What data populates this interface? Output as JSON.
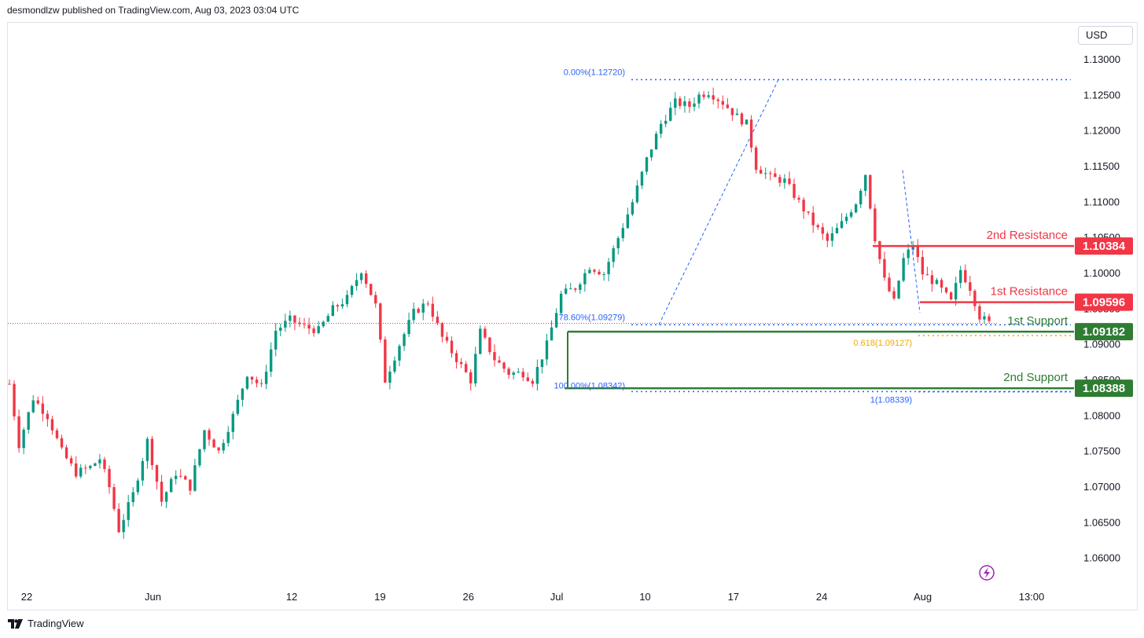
{
  "header": {
    "publisher": "desmondlzw published on TradingView.com, Aug 03, 2023 03:04 UTC"
  },
  "currency_button": {
    "label": "USD"
  },
  "footer": {
    "logo_label": "TradingView"
  },
  "colors": {
    "bull": "#089981",
    "bear": "#f23645",
    "resistance": "#f23645",
    "support": "#2e7d32",
    "fib_blue": "#2962ff",
    "fib_orange": "#f0a800"
  },
  "chart_data": {
    "type": "candlestick",
    "title": "",
    "symbol_quote": "USD",
    "y_ticks": [
      "1.13000",
      "1.12500",
      "1.12000",
      "1.11500",
      "1.11000",
      "1.10500",
      "1.10000",
      "1.09500",
      "1.09000",
      "1.08500",
      "1.08000",
      "1.07500",
      "1.07000",
      "1.06500",
      "1.06000"
    ],
    "ylim": [
      1.0572,
      1.1335
    ],
    "x_ticks": [
      {
        "label": "22",
        "date": "2023-05-22"
      },
      {
        "label": "Jun",
        "date": "2023-06-01"
      },
      {
        "label": "12",
        "date": "2023-06-12"
      },
      {
        "label": "19",
        "date": "2023-06-19"
      },
      {
        "label": "26",
        "date": "2023-06-26"
      },
      {
        "label": "Jul",
        "date": "2023-07-03"
      },
      {
        "label": "10",
        "date": "2023-07-10"
      },
      {
        "label": "17",
        "date": "2023-07-17"
      },
      {
        "label": "24",
        "date": "2023-07-24"
      },
      {
        "label": "Aug",
        "date": "2023-08-01"
      },
      {
        "label": "13:00",
        "date": "2023-08-03"
      }
    ],
    "last_price": 1.093,
    "price_path": [
      [
        0,
        1.0845
      ],
      [
        2,
        1.076
      ],
      [
        5,
        1.0825
      ],
      [
        8,
        1.08
      ],
      [
        11,
        1.075
      ],
      [
        14,
        1.072
      ],
      [
        17,
        1.0728
      ],
      [
        19,
        1.074
      ],
      [
        21,
        1.07
      ],
      [
        23,
        1.064
      ],
      [
        26,
        1.069
      ],
      [
        29,
        1.0765
      ],
      [
        32,
        1.068
      ],
      [
        35,
        1.072
      ],
      [
        38,
        1.07
      ],
      [
        41,
        1.078
      ],
      [
        44,
        1.075
      ],
      [
        47,
        1.08
      ],
      [
        50,
        1.086
      ],
      [
        53,
        1.084
      ],
      [
        56,
        1.092
      ],
      [
        59,
        1.0935
      ],
      [
        62,
        1.0925
      ],
      [
        65,
        1.092
      ],
      [
        68,
        1.095
      ],
      [
        71,
        1.0965
      ],
      [
        74,
        1.1005
      ],
      [
        77,
        1.0955
      ],
      [
        79,
        1.085
      ],
      [
        82,
        1.09
      ],
      [
        85,
        1.0945
      ],
      [
        88,
        1.096
      ],
      [
        91,
        1.091
      ],
      [
        94,
        1.088
      ],
      [
        97,
        1.085
      ],
      [
        99,
        1.0918
      ],
      [
        102,
        1.088
      ],
      [
        105,
        1.086
      ],
      [
        108,
        1.086
      ],
      [
        110,
        1.085
      ],
      [
        113,
        1.09
      ],
      [
        116,
        1.097
      ],
      [
        119,
        1.098
      ],
      [
        122,
        1.101
      ],
      [
        125,
        1.1
      ],
      [
        128,
        1.105
      ],
      [
        131,
        1.11
      ],
      [
        134,
        1.116
      ],
      [
        137,
        1.121
      ],
      [
        140,
        1.124
      ],
      [
        143,
        1.1235
      ],
      [
        145,
        1.125
      ],
      [
        147,
        1.1255
      ],
      [
        150,
        1.124
      ],
      [
        153,
        1.122
      ],
      [
        155,
        1.121
      ],
      [
        157,
        1.115
      ],
      [
        160,
        1.1135
      ],
      [
        163,
        1.113
      ],
      [
        166,
        1.11
      ],
      [
        169,
        1.107
      ],
      [
        172,
        1.1045
      ],
      [
        175,
        1.107
      ],
      [
        178,
        1.11
      ],
      [
        180,
        1.114
      ],
      [
        182,
        1.105
      ],
      [
        184,
        1.099
      ],
      [
        186,
        1.096
      ],
      [
        188,
        1.102
      ],
      [
        190,
        1.104
      ],
      [
        192,
        1.1
      ],
      [
        195,
        1.0985
      ],
      [
        198,
        1.096
      ],
      [
        200,
        1.1005
      ],
      [
        202,
        1.098
      ],
      [
        204,
        1.094
      ],
      [
        206,
        1.093
      ]
    ],
    "levels": [
      {
        "name": "2nd Resistance",
        "value": "1.10384",
        "kind": "resistance"
      },
      {
        "name": "1st Resistance",
        "value": "1.09596",
        "kind": "resistance"
      },
      {
        "name": "1st Support",
        "value": "1.09182",
        "kind": "support"
      },
      {
        "name": "2nd Support",
        "value": "1.08388",
        "kind": "support"
      }
    ],
    "fib_labels": [
      {
        "text": "0.00%(1.12720)",
        "value": 1.1272
      },
      {
        "text": "78.60%(1.09279)",
        "value": 1.09279
      },
      {
        "text": "100.00%(1.08342)",
        "value": 1.08342
      },
      {
        "text": "0.618(1.09127)",
        "value": 1.09127
      },
      {
        "text": "1(1.08339)",
        "value": 1.08339
      }
    ]
  }
}
